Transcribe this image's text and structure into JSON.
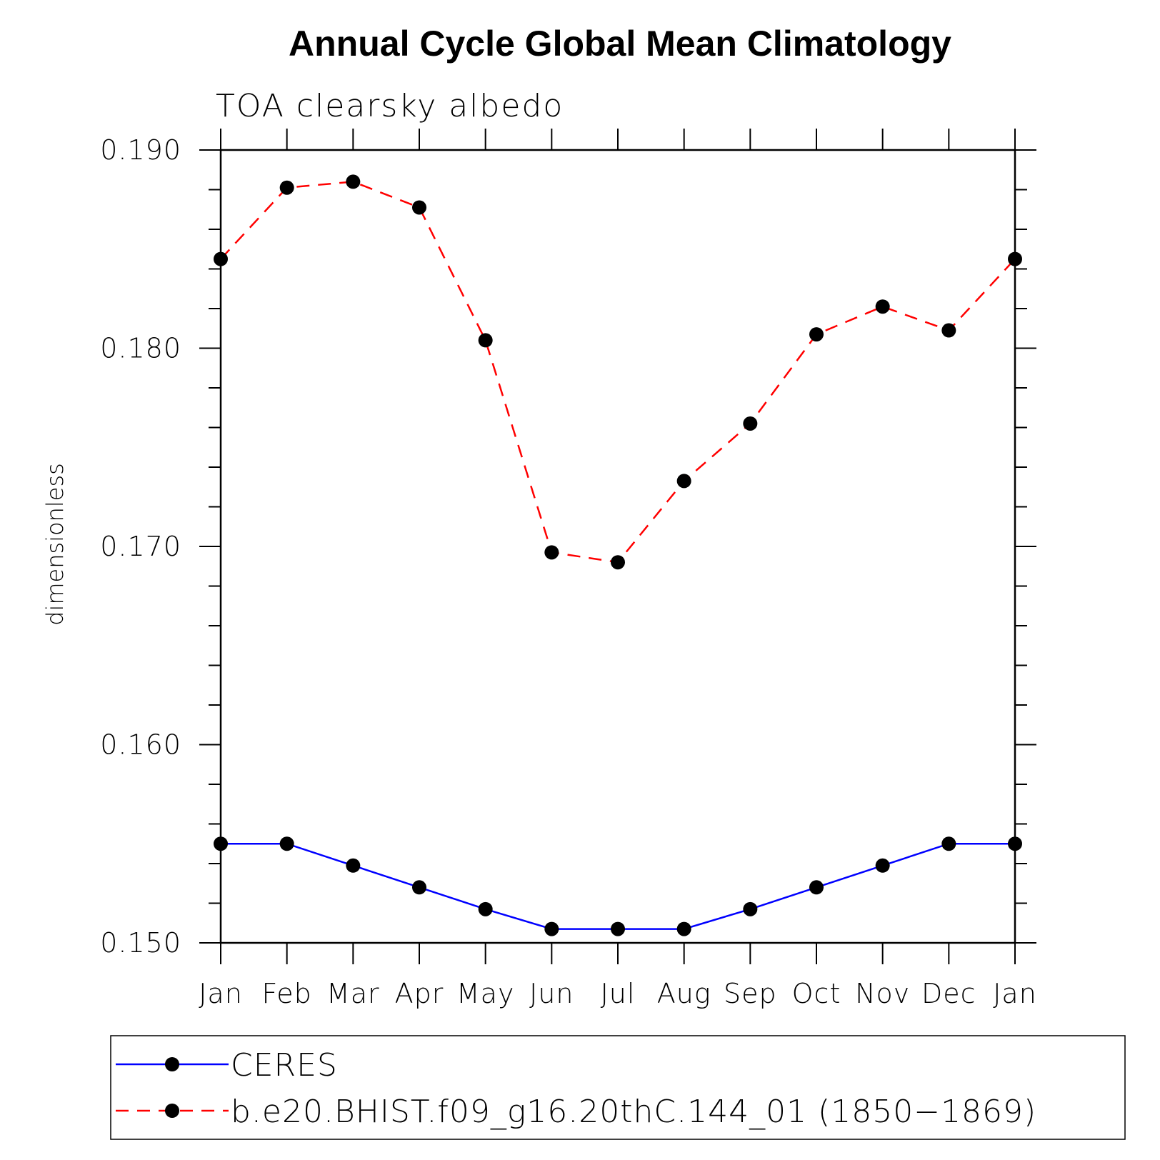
{
  "chart_data": {
    "type": "line",
    "title": "Annual Cycle Global Mean Climatology",
    "subtitle": "TOA clearsky albedo",
    "xlabel": "",
    "ylabel": "dimensionless",
    "categories": [
      "Jan",
      "Feb",
      "Mar",
      "Apr",
      "May",
      "Jun",
      "Jul",
      "Aug",
      "Sep",
      "Oct",
      "Nov",
      "Dec",
      "Jan"
    ],
    "ylim": [
      0.15,
      0.19
    ],
    "yticks": [
      0.15,
      0.16,
      0.17,
      0.18,
      0.19
    ],
    "ytick_labels": [
      "0.150",
      "0.160",
      "0.170",
      "0.180",
      "0.190"
    ],
    "legend_placement": "bottom",
    "grid": false,
    "series": [
      {
        "name": "CERES",
        "color": "#0000ff",
        "dash": "solid",
        "values": [
          0.155,
          0.155,
          0.1539,
          0.1528,
          0.1517,
          0.1507,
          0.1507,
          0.1507,
          0.1517,
          0.1528,
          0.1539,
          0.155,
          0.155
        ]
      },
      {
        "name": "b.e20.BHIST.f09_g16.20thC.144_01 (1850−1869)",
        "color": "#ff0000",
        "dash": "dashed",
        "values": [
          0.1845,
          0.1881,
          0.1884,
          0.1871,
          0.1804,
          0.1697,
          0.1692,
          0.1733,
          0.1762,
          0.1807,
          0.1821,
          0.1809,
          0.1845
        ]
      }
    ]
  }
}
